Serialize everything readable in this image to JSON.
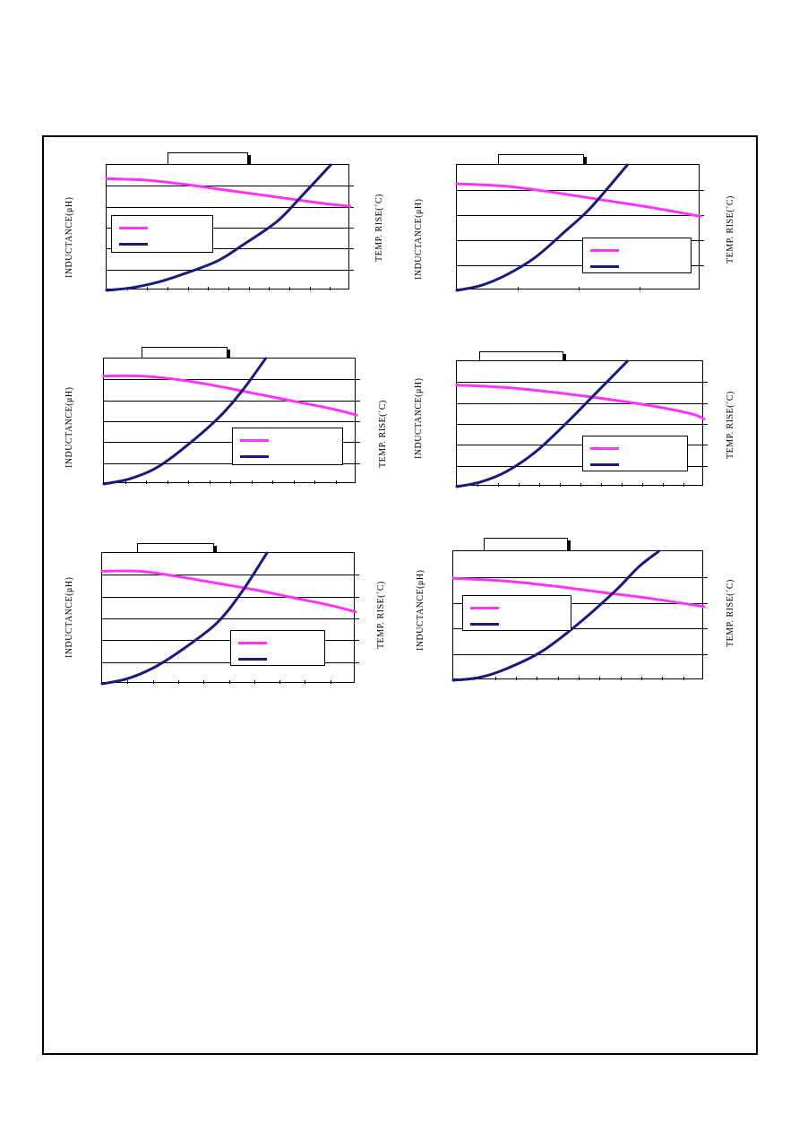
{
  "page": {
    "axis_labels": {
      "left": "INDUCTANCE(μH)",
      "right": "TEMP. RISE(˚C)"
    }
  },
  "colors": {
    "inductance": "#ff33ff",
    "temp_rise": "#1a1a7a"
  },
  "chart_data": [
    {
      "type": "line",
      "title": "",
      "ylabel": "INDUCTANCE(μH)",
      "y2label": "TEMP. RISE(˚C)",
      "xlim": [
        0,
        1
      ],
      "ylim": [
        0,
        1
      ],
      "y2lim": [
        0,
        1
      ],
      "grid": true,
      "legend": "mid-left",
      "series": [
        {
          "name": "",
          "axis": "left",
          "color": "#ff33ff",
          "x": [
            0,
            0.15,
            0.3,
            0.45,
            0.6,
            0.75,
            0.9,
            1.0
          ],
          "y": [
            0.89,
            0.88,
            0.85,
            0.81,
            0.77,
            0.73,
            0.69,
            0.67
          ]
        },
        {
          "name": "",
          "axis": "right",
          "color": "#1a1a7a",
          "x": [
            0,
            0.1,
            0.2,
            0.3,
            0.45,
            0.55,
            0.7,
            0.8,
            0.92
          ],
          "y": [
            0.0,
            0.02,
            0.06,
            0.12,
            0.23,
            0.35,
            0.55,
            0.75,
            1.0
          ]
        }
      ]
    },
    {
      "type": "line",
      "title": "",
      "ylabel": "INDUCTANCE(μH)",
      "y2label": "TEMP. RISE(˚C)",
      "xlim": [
        0,
        1
      ],
      "ylim": [
        0,
        1
      ],
      "y2lim": [
        0,
        1
      ],
      "grid": true,
      "legend": "bottom-right",
      "series": [
        {
          "name": "",
          "axis": "left",
          "color": "#ff33ff",
          "x": [
            0,
            0.2,
            0.4,
            0.6,
            0.8,
            1.0
          ],
          "y": [
            0.85,
            0.83,
            0.78,
            0.72,
            0.66,
            0.59
          ]
        },
        {
          "name": "",
          "axis": "right",
          "color": "#1a1a7a",
          "x": [
            0,
            0.1,
            0.2,
            0.32,
            0.45,
            0.55,
            0.7
          ],
          "y": [
            0.0,
            0.04,
            0.12,
            0.26,
            0.48,
            0.66,
            1.0
          ]
        }
      ]
    },
    {
      "type": "line",
      "title": "",
      "ylabel": "INDUCTANCE(μH)",
      "y2label": "TEMP. RISE(˚C)",
      "xlim": [
        0,
        1
      ],
      "ylim": [
        0,
        1
      ],
      "y2lim": [
        0,
        1
      ],
      "grid": true,
      "legend": "bottom-right",
      "series": [
        {
          "name": "",
          "axis": "left",
          "color": "#ff33ff",
          "x": [
            0,
            0.15,
            0.3,
            0.45,
            0.6,
            0.75,
            0.9,
            1.0
          ],
          "y": [
            0.86,
            0.86,
            0.83,
            0.78,
            0.72,
            0.66,
            0.6,
            0.55
          ]
        },
        {
          "name": "",
          "axis": "right",
          "color": "#1a1a7a",
          "x": [
            0,
            0.1,
            0.2,
            0.3,
            0.45,
            0.55,
            0.64
          ],
          "y": [
            0.0,
            0.04,
            0.12,
            0.26,
            0.52,
            0.75,
            1.0
          ]
        }
      ]
    },
    {
      "type": "line",
      "title": "",
      "ylabel": "INDUCTANCE(μH)",
      "y2label": "TEMP. RISE(˚C)",
      "xlim": [
        0,
        1
      ],
      "ylim": [
        0,
        1
      ],
      "y2lim": [
        0,
        1
      ],
      "grid": true,
      "legend": "bottom-right",
      "series": [
        {
          "name": "",
          "axis": "left",
          "color": "#ff33ff",
          "x": [
            0,
            0.2,
            0.4,
            0.6,
            0.8,
            0.95,
            1.0
          ],
          "y": [
            0.81,
            0.79,
            0.75,
            0.7,
            0.64,
            0.58,
            0.54
          ]
        },
        {
          "name": "",
          "axis": "right",
          "color": "#1a1a7a",
          "x": [
            0,
            0.1,
            0.2,
            0.32,
            0.45,
            0.55,
            0.69
          ],
          "y": [
            0.0,
            0.04,
            0.12,
            0.28,
            0.52,
            0.72,
            1.0
          ]
        }
      ]
    },
    {
      "type": "line",
      "title": "",
      "ylabel": "INDUCTANCE(μH)",
      "y2label": "TEMP. RISE(˚C)",
      "xlim": [
        0,
        1
      ],
      "ylim": [
        0,
        1
      ],
      "y2lim": [
        0,
        1
      ],
      "grid": true,
      "legend": "bottom-right",
      "series": [
        {
          "name": "",
          "axis": "left",
          "color": "#ff33ff",
          "x": [
            0,
            0.15,
            0.3,
            0.45,
            0.6,
            0.75,
            0.9,
            1.0
          ],
          "y": [
            0.86,
            0.86,
            0.82,
            0.77,
            0.72,
            0.66,
            0.6,
            0.55
          ]
        },
        {
          "name": "",
          "axis": "right",
          "color": "#1a1a7a",
          "x": [
            0,
            0.1,
            0.2,
            0.3,
            0.45,
            0.55,
            0.65
          ],
          "y": [
            0.0,
            0.04,
            0.12,
            0.24,
            0.46,
            0.7,
            1.0
          ]
        }
      ]
    },
    {
      "type": "line",
      "title": "",
      "ylabel": "INDUCTANCE(μH)",
      "y2label": "TEMP. RISE(˚C)",
      "xlim": [
        0,
        1
      ],
      "ylim": [
        0,
        1
      ],
      "y2lim": [
        0,
        1
      ],
      "grid": true,
      "legend": "top-left",
      "series": [
        {
          "name": "",
          "axis": "left",
          "color": "#ff33ff",
          "x": [
            0,
            0.2,
            0.4,
            0.6,
            0.8,
            1.0
          ],
          "y": [
            0.79,
            0.77,
            0.73,
            0.68,
            0.63,
            0.57
          ]
        },
        {
          "name": "",
          "axis": "right",
          "color": "#1a1a7a",
          "x": [
            0,
            0.1,
            0.2,
            0.35,
            0.5,
            0.65,
            0.74,
            0.82
          ],
          "y": [
            0.0,
            0.02,
            0.08,
            0.22,
            0.44,
            0.7,
            0.88,
            1.0
          ]
        }
      ]
    }
  ]
}
